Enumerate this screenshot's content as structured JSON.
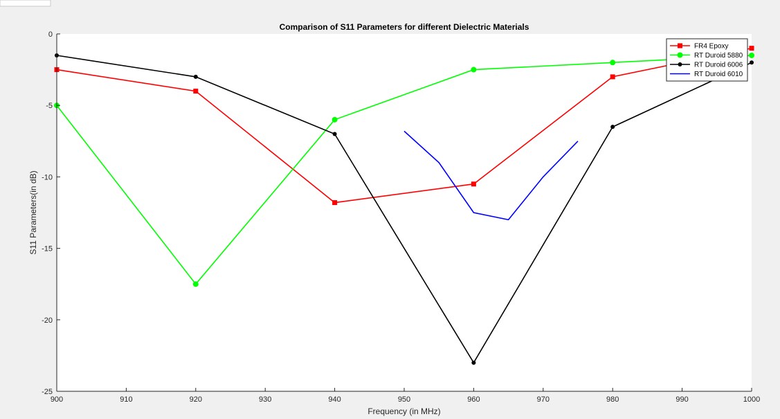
{
  "chart_data": {
    "type": "line",
    "title": "Comparison of S11 Parameters for different Dielectric Materials",
    "xlabel": "Frequency (in MHz)",
    "ylabel": "S11 Parameters(in dB)",
    "xlim": [
      900,
      1000
    ],
    "ylim": [
      -25,
      0
    ],
    "xticks": [
      900,
      910,
      920,
      930,
      940,
      950,
      960,
      970,
      980,
      990,
      1000
    ],
    "yticks": [
      0,
      -5,
      -10,
      -15,
      -20,
      -25
    ],
    "grid": false,
    "legend_position": "top-right",
    "series": [
      {
        "name": "FR4 Epoxy",
        "color": "#ff0000",
        "marker": "square",
        "x": [
          900,
          920,
          940,
          960,
          980,
          1000
        ],
        "y": [
          -2.5,
          -4,
          -11.8,
          -10.5,
          -3,
          -1
        ]
      },
      {
        "name": "RT Duroid 5880",
        "color": "#00ff00",
        "marker": "circle",
        "x": [
          900,
          920,
          940,
          960,
          980,
          1000
        ],
        "y": [
          -5,
          -17.5,
          -6,
          -2.5,
          -2,
          -1.5
        ]
      },
      {
        "name": "RT Duroid 6006",
        "color": "#000000",
        "marker": "dot",
        "x": [
          900,
          920,
          940,
          960,
          980,
          1000
        ],
        "y": [
          -1.5,
          -3,
          -7,
          -23,
          -6.5,
          -2
        ]
      },
      {
        "name": "RT Duroid 6010",
        "color": "#0000ff",
        "marker": "none",
        "x": [
          950,
          955,
          960,
          965,
          970,
          975
        ],
        "y": [
          -6.8,
          -9,
          -12.5,
          -13,
          -10,
          -7.5
        ]
      }
    ]
  }
}
